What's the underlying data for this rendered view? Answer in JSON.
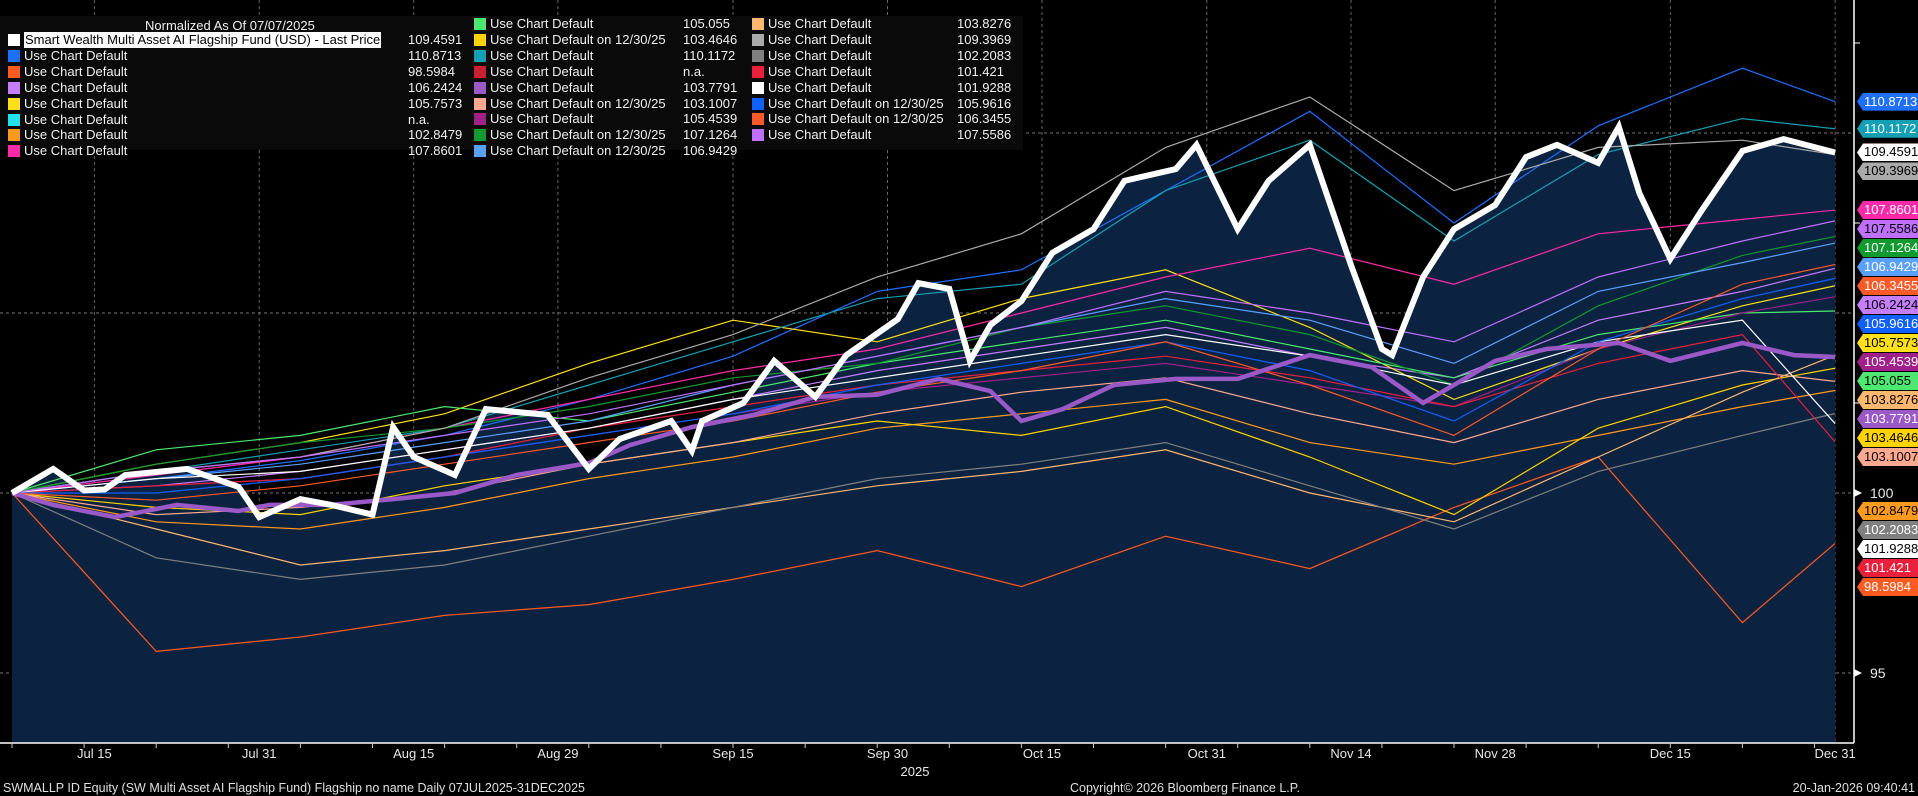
{
  "chart_data": {
    "type": "line",
    "legend_title": "Normalized As Of 07/07/2025",
    "xlabel": "2025",
    "x_ticks": [
      "Jul 15",
      "Jul 31",
      "Aug 15",
      "Aug 29",
      "Sep 15",
      "Sep 30",
      "Oct 15",
      "Oct 31",
      "Nov 14",
      "Nov 28",
      "Dec 15",
      "Dec 31"
    ],
    "x_tick_dates": [
      "2025-07-15",
      "2025-07-31",
      "2025-08-15",
      "2025-08-29",
      "2025-09-15",
      "2025-09-30",
      "2025-10-15",
      "2025-10-31",
      "2025-11-14",
      "2025-11-28",
      "2025-12-15",
      "2025-12-31"
    ],
    "x_range": [
      "2025-07-07",
      "2025-12-31"
    ],
    "y_ticks": [
      "95",
      "100"
    ],
    "y_range": [
      89.4,
      113.7
    ],
    "y_axis_side": "right",
    "grid": true,
    "legend_position": "top-left",
    "background": "#000000",
    "area_fill": "#0b2240",
    "shared_dates": [
      "2025-07-07",
      "2025-07-21",
      "2025-08-04",
      "2025-08-18",
      "2025-09-01",
      "2025-09-15",
      "2025-09-29",
      "2025-10-13",
      "2025-10-27",
      "2025-11-10",
      "2025-11-24",
      "2025-12-08",
      "2025-12-22",
      "2025-12-31"
    ],
    "series": [
      {
        "name": "Smart Wealth Multi Asset AI Flagship Fund (USD) - Last Price",
        "value": "109.4591",
        "color": "#ffffff",
        "highlight": true,
        "thick": true,
        "area": true,
        "dates": [
          "2025-07-07",
          "2025-07-11",
          "2025-07-14",
          "2025-07-16",
          "2025-07-18",
          "2025-07-24",
          "2025-07-29",
          "2025-07-31",
          "2025-08-04",
          "2025-08-07",
          "2025-08-11",
          "2025-08-13",
          "2025-08-15",
          "2025-08-19",
          "2025-08-22",
          "2025-08-28",
          "2025-09-01",
          "2025-09-04",
          "2025-09-09",
          "2025-09-11",
          "2025-09-12",
          "2025-09-16",
          "2025-09-19",
          "2025-09-23",
          "2025-09-26",
          "2025-10-01",
          "2025-10-03",
          "2025-10-06",
          "2025-10-08",
          "2025-10-10",
          "2025-10-13",
          "2025-10-16",
          "2025-10-20",
          "2025-10-23",
          "2025-10-28",
          "2025-10-30",
          "2025-11-03",
          "2025-11-06",
          "2025-11-10",
          "2025-11-14",
          "2025-11-17",
          "2025-11-18",
          "2025-11-21",
          "2025-11-24",
          "2025-11-28",
          "2025-12-01",
          "2025-12-04",
          "2025-12-08",
          "2025-12-10",
          "2025-12-12",
          "2025-12-15",
          "2025-12-18",
          "2025-12-22",
          "2025-12-26",
          "2025-12-31"
        ],
        "values": [
          100,
          100.67,
          100.07,
          100.1,
          100.5,
          100.67,
          100.17,
          99.33,
          99.83,
          99.67,
          99.4,
          101.83,
          101.0,
          100.5,
          102.33,
          102.17,
          100.67,
          101.5,
          102.0,
          101.17,
          102.0,
          102.5,
          103.67,
          102.67,
          103.83,
          104.83,
          105.83,
          105.67,
          103.67,
          104.67,
          105.33,
          106.67,
          107.33,
          108.67,
          109.0,
          109.67,
          107.33,
          108.67,
          109.67,
          106.33,
          104.0,
          103.83,
          106.0,
          107.33,
          108.0,
          109.33,
          109.67,
          109.17,
          110.17,
          108.33,
          106.5,
          107.83,
          109.5,
          109.83,
          109.4591
        ]
      },
      {
        "name": "Use Chart Default",
        "value": "110.8713",
        "color": "#1f6fff",
        "values": [
          100,
          100.4,
          100.9,
          101.6,
          102.6,
          103.8,
          105.6,
          106.2,
          108.4,
          110.6,
          107.5,
          110.2,
          111.8,
          110.8713
        ]
      },
      {
        "name": "Use Chart Default",
        "value": "98.5984",
        "color": "#ff5a1f",
        "values": [
          100,
          95.6,
          96.0,
          96.6,
          96.9,
          97.6,
          98.4,
          97.4,
          98.8,
          97.9,
          99.6,
          101.0,
          96.4,
          98.5984
        ]
      },
      {
        "name": "Use Chart Default",
        "value": "106.2424",
        "color": "#c77dff",
        "values": [
          100,
          100.2,
          100.6,
          101.2,
          101.8,
          102.6,
          103.4,
          104.0,
          104.6,
          103.8,
          103.2,
          104.8,
          105.6,
          106.2424
        ]
      },
      {
        "name": "Use Chart Default",
        "value": "105.7573",
        "color": "#ffe01a",
        "values": [
          100,
          100.8,
          101.4,
          102.2,
          103.6,
          104.8,
          104.2,
          105.4,
          106.2,
          104.6,
          102.6,
          104.0,
          105.2,
          105.7573
        ]
      },
      {
        "name": "Use Chart Default",
        "value": "n.a.",
        "color": "#22e0f0"
      },
      {
        "name": "Use Chart Default",
        "value": "102.8479",
        "color": "#ff9a1f",
        "values": [
          100,
          99.2,
          99.0,
          99.6,
          100.4,
          101.0,
          101.8,
          102.2,
          102.6,
          101.4,
          100.8,
          101.6,
          102.4,
          102.8479
        ]
      },
      {
        "name": "Use Chart Default",
        "value": "107.8601",
        "color": "#ff2aa8",
        "values": [
          100,
          100.5,
          101.0,
          101.8,
          102.6,
          103.4,
          104.0,
          105.0,
          106.0,
          106.8,
          105.8,
          107.2,
          107.6,
          107.8601
        ]
      },
      {
        "name": "Use Chart Default",
        "value": "105.055",
        "color": "#4de870",
        "values": [
          100,
          101.2,
          101.6,
          102.4,
          102.0,
          102.8,
          103.6,
          104.2,
          104.8,
          104.0,
          103.2,
          104.4,
          105.0,
          105.055
        ]
      },
      {
        "name": "Use Chart Default on 12/30/25",
        "value": "103.4646",
        "color": "#ffd400",
        "values": [
          100,
          99.6,
          99.4,
          100.2,
          100.8,
          101.4,
          102.0,
          101.6,
          102.4,
          101.0,
          99.4,
          101.8,
          103.0,
          103.4646
        ]
      },
      {
        "name": "Use Chart Default",
        "value": "110.1172",
        "color": "#14a0b4",
        "values": [
          100,
          100.6,
          101.2,
          101.8,
          103.0,
          104.2,
          105.4,
          105.8,
          108.4,
          109.8,
          107.0,
          109.4,
          110.4,
          110.1172
        ]
      },
      {
        "name": "Use Chart Default",
        "value": "n.a.",
        "color": "#c8202e"
      },
      {
        "name": "Use Chart Default",
        "value": "103.7791",
        "color": "#9b59c8",
        "thick": true,
        "dates": [
          "2025-07-07",
          "2025-07-11",
          "2025-07-17",
          "2025-07-23",
          "2025-07-29",
          "2025-08-01",
          "2025-08-07",
          "2025-08-13",
          "2025-08-19",
          "2025-08-25",
          "2025-09-01",
          "2025-09-05",
          "2025-09-11",
          "2025-09-17",
          "2025-09-23",
          "2025-09-29",
          "2025-10-05",
          "2025-10-10",
          "2025-10-13",
          "2025-10-17",
          "2025-10-22",
          "2025-10-28",
          "2025-11-03",
          "2025-11-10",
          "2025-11-16",
          "2025-11-21",
          "2025-11-28",
          "2025-12-03",
          "2025-12-10",
          "2025-12-15",
          "2025-12-22",
          "2025-12-27",
          "2025-12-31"
        ],
        "values": [
          100,
          99.67,
          99.33,
          99.67,
          99.5,
          99.67,
          99.67,
          99.83,
          100.0,
          100.5,
          100.83,
          101.33,
          101.83,
          102.17,
          102.67,
          102.73,
          103.17,
          102.83,
          102.0,
          102.33,
          103.0,
          103.17,
          103.17,
          103.83,
          103.5,
          102.5,
          103.67,
          104.0,
          104.17,
          103.67,
          104.17,
          103.83,
          103.7791
        ]
      },
      {
        "name": "Use Chart Default on 12/30/25",
        "value": "103.1007",
        "color": "#ffaa90",
        "values": [
          100,
          99.4,
          99.6,
          100.0,
          100.8,
          101.4,
          102.2,
          102.8,
          103.2,
          102.2,
          101.4,
          102.6,
          103.4,
          103.1007
        ]
      },
      {
        "name": "Use Chart Default",
        "value": "105.4539",
        "color": "#a0208a",
        "values": [
          100,
          100.2,
          100.4,
          101.0,
          101.6,
          102.2,
          102.8,
          103.2,
          103.6,
          103.0,
          102.4,
          104.0,
          105.0,
          105.4539
        ]
      },
      {
        "name": "Use Chart Default on 12/30/25",
        "value": "107.1264",
        "color": "#109a30",
        "values": [
          100,
          100.8,
          101.4,
          101.8,
          102.4,
          103.2,
          103.6,
          104.6,
          105.2,
          104.4,
          103.0,
          105.2,
          106.6,
          107.1264
        ]
      },
      {
        "name": "Use Chart Default on 12/30/25",
        "value": "106.9429",
        "color": "#5aa0ff",
        "values": [
          100,
          100.4,
          100.8,
          101.4,
          102.0,
          103.0,
          103.8,
          104.6,
          105.4,
          104.8,
          103.6,
          105.6,
          106.4,
          106.9429
        ]
      },
      {
        "name": "Use Chart Default",
        "value": "103.8276",
        "color": "#ffb870",
        "values": [
          100,
          99.0,
          98.0,
          98.4,
          99.0,
          99.6,
          100.2,
          100.6,
          101.2,
          100.0,
          99.2,
          101.0,
          102.8,
          103.8276
        ]
      },
      {
        "name": "Use Chart Default",
        "value": "109.3969",
        "color": "#aaaaaa",
        "values": [
          100,
          100.6,
          101.0,
          101.8,
          103.2,
          104.4,
          106.0,
          107.2,
          109.6,
          111.0,
          108.4,
          109.6,
          109.8,
          109.3969
        ]
      },
      {
        "name": "Use Chart Default",
        "value": "102.2083",
        "color": "#808080",
        "values": [
          100,
          98.2,
          97.6,
          98.0,
          98.8,
          99.6,
          100.4,
          100.8,
          101.4,
          100.2,
          99.0,
          100.6,
          101.6,
          102.2083
        ]
      },
      {
        "name": "Use Chart Default",
        "value": "101.421",
        "color": "#e8203c",
        "values": [
          100,
          100.2,
          100.4,
          101.0,
          101.8,
          102.4,
          103.0,
          103.4,
          103.8,
          103.2,
          102.4,
          103.6,
          104.4,
          101.421
        ]
      },
      {
        "name": "Use Chart Default",
        "value": "101.9288",
        "color": "#ffffff",
        "values": [
          100,
          100.4,
          100.6,
          101.2,
          101.8,
          102.6,
          103.2,
          103.8,
          104.4,
          103.8,
          103.0,
          104.2,
          104.8,
          101.9288
        ]
      },
      {
        "name": "Use Chart Default on 12/30/25",
        "value": "105.9616",
        "color": "#1060ff",
        "values": [
          100,
          100.0,
          100.4,
          101.0,
          101.6,
          102.2,
          103.0,
          103.6,
          104.2,
          103.4,
          102.0,
          104.2,
          105.4,
          105.9616
        ]
      },
      {
        "name": "Use Chart Default on 12/30/25",
        "value": "106.3455",
        "color": "#ff5a28",
        "values": [
          100,
          99.8,
          100.2,
          100.8,
          101.4,
          102.0,
          102.8,
          103.4,
          104.2,
          103.0,
          101.6,
          104.0,
          105.8,
          106.3455
        ]
      },
      {
        "name": "Use Chart Default",
        "value": "107.5586",
        "color": "#c070ff",
        "values": [
          100,
          100.6,
          101.0,
          101.6,
          102.2,
          103.0,
          103.8,
          104.6,
          105.6,
          105.0,
          104.2,
          106.0,
          107.0,
          107.5586
        ]
      }
    ]
  },
  "footer": {
    "description": "SWMALLP ID Equity (SW Multi Asset AI Flagship Fund) Flagship no name Daily 07JUL2025-31DEC2025",
    "copyright": "Copyright© 2026 Bloomberg Finance L.P.",
    "timestamp": "20-Jan-2026 09:40:41"
  }
}
